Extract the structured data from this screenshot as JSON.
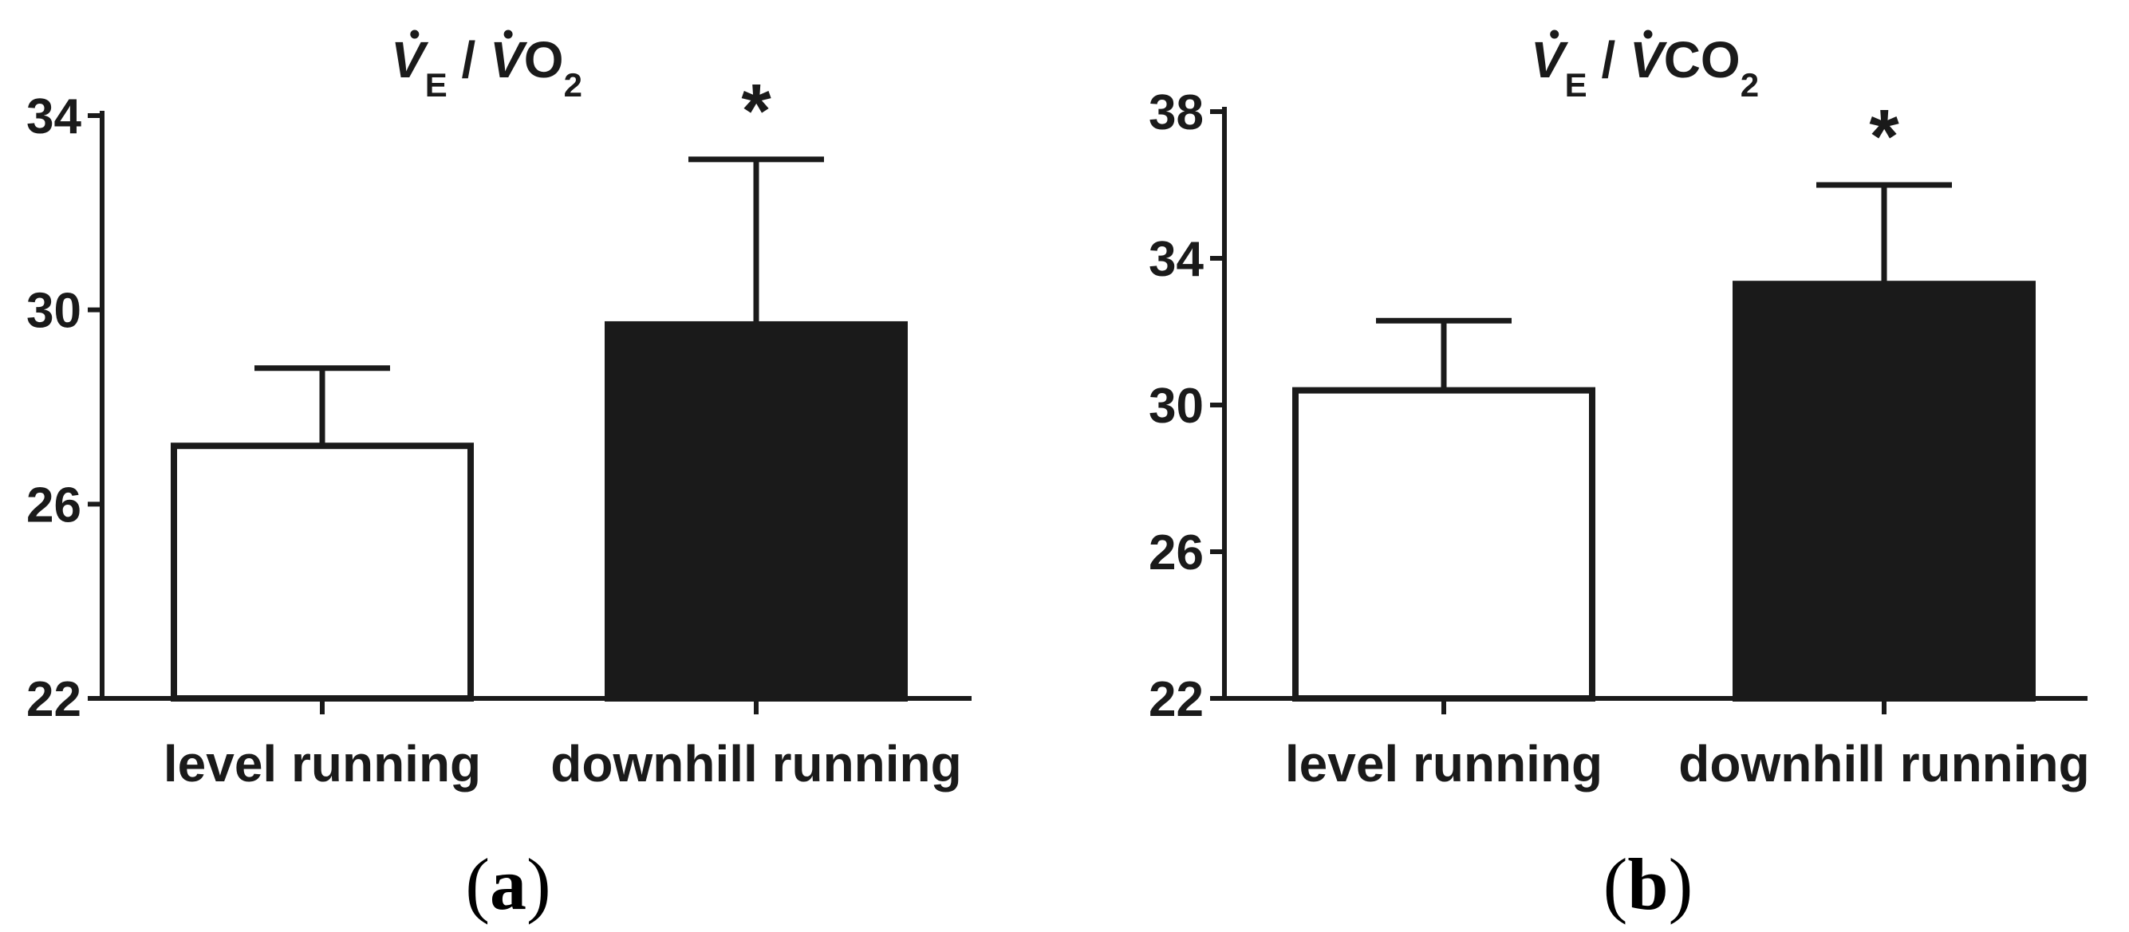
{
  "colors": {
    "ink": "#1a1a1a",
    "open_bar": "#ffffff",
    "filled_bar": "#1a1a1a"
  },
  "chart_data": [
    {
      "type": "bar",
      "panel_label": {
        "open": "(",
        "letter": "a",
        "close": ")"
      },
      "title": {
        "v1": "V",
        "sub1": "E",
        "slash": "/",
        "v2": "V",
        "rest": "O",
        "sub2": "2"
      },
      "categories": [
        "level running",
        "downhill running"
      ],
      "values": [
        27.2,
        29.7
      ],
      "errors_upper": [
        28.8,
        33.1
      ],
      "significance": [
        "",
        "*"
      ],
      "bar_colors": [
        "#ffffff",
        "#1a1a1a"
      ],
      "ylim": [
        22,
        34
      ],
      "yticks": [
        22,
        26,
        30,
        34
      ],
      "xlabel": "",
      "ylabel": "",
      "grid": false,
      "legend": "none"
    },
    {
      "type": "bar",
      "panel_label": {
        "open": "(",
        "letter": "b",
        "close": ")"
      },
      "title": {
        "v1": "V",
        "sub1": "E",
        "slash": "/",
        "v2": "V",
        "rest": "CO",
        "sub2": "2"
      },
      "categories": [
        "level running",
        "downhill running"
      ],
      "values": [
        30.4,
        33.3
      ],
      "errors_upper": [
        32.3,
        36.0
      ],
      "significance": [
        "",
        "*"
      ],
      "bar_colors": [
        "#ffffff",
        "#1a1a1a"
      ],
      "ylim": [
        22,
        38
      ],
      "yticks": [
        22,
        26,
        30,
        34,
        38
      ],
      "xlabel": "",
      "ylabel": "",
      "grid": false,
      "legend": "none"
    }
  ]
}
